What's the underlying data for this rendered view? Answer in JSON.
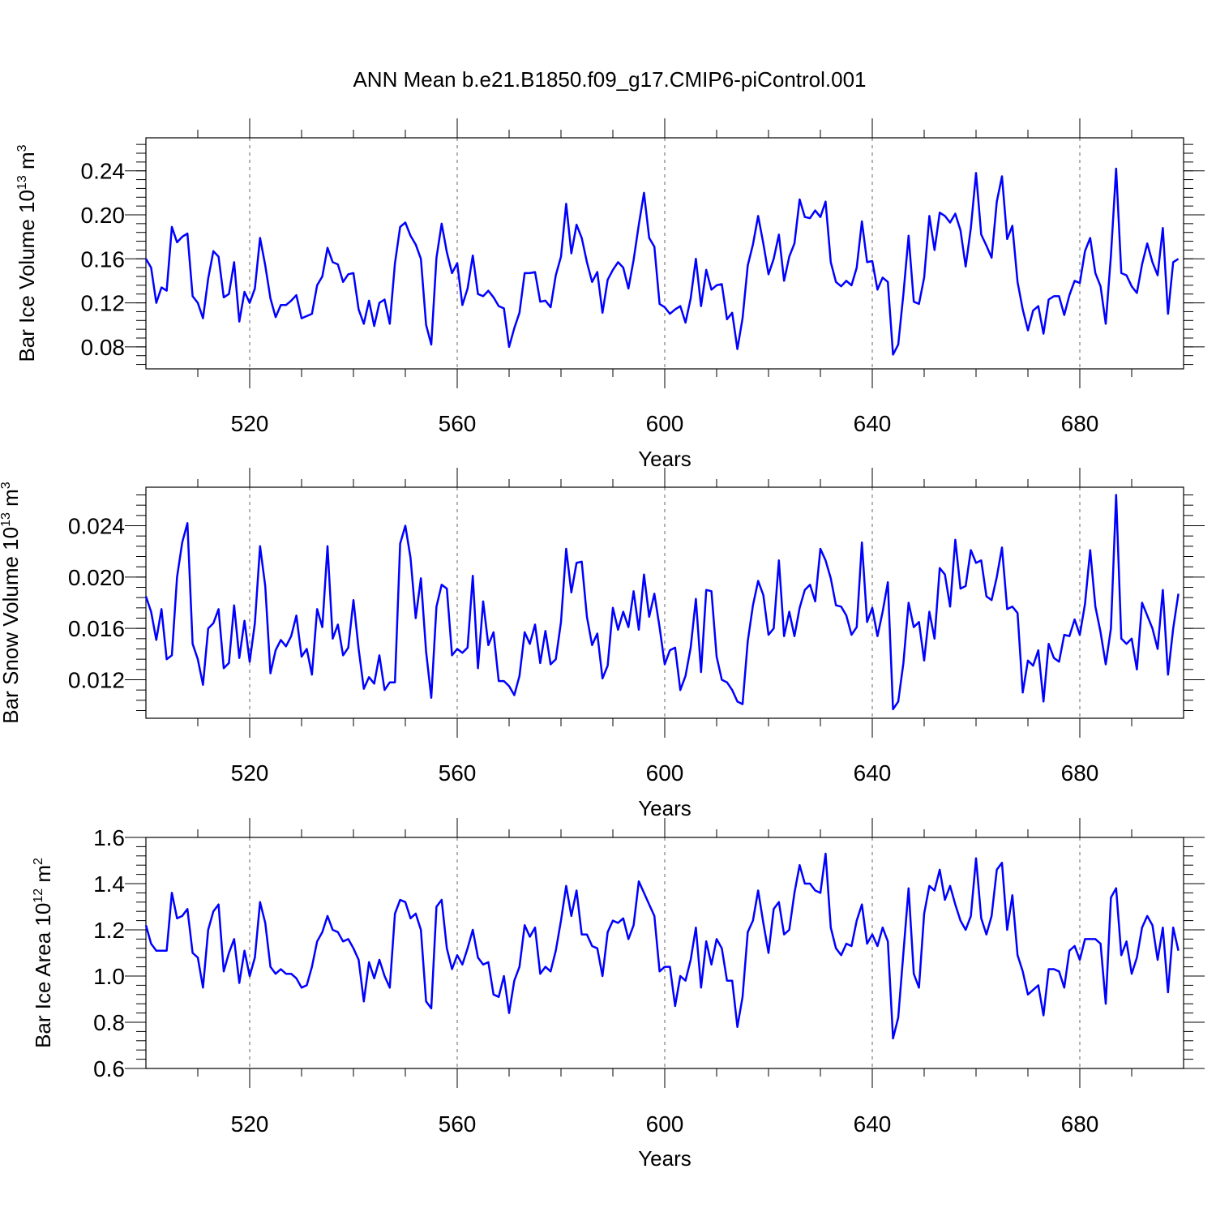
{
  "title": "ANN Mean b.e21.B1850.f09_g17.CMIP6-piControl.001",
  "chart_data": [
    {
      "type": "line",
      "ylabel_main": "Bar Ice Volume 10",
      "ylabel_sup": "13",
      "ylabel_unit": " m",
      "ylabel_unit_sup": "3",
      "xlabel": "Years",
      "xlim": [
        500,
        700
      ],
      "ylim": [
        0.06,
        0.27
      ],
      "yticks": [
        0.08,
        0.12,
        0.16,
        0.2,
        0.24
      ],
      "ytick_labels": [
        "0.08",
        "0.12",
        "0.16",
        "0.20",
        "0.24"
      ],
      "xticks": [
        520,
        560,
        600,
        640,
        680
      ],
      "xtick_labels": [
        "520",
        "560",
        "600",
        "640",
        "680"
      ],
      "series": [
        {
          "name": "Bar Ice Volume",
          "color": "#0000ff",
          "start_year": 500,
          "values": [
            0.16,
            0.152,
            0.12,
            0.134,
            0.131,
            0.189,
            0.175,
            0.18,
            0.183,
            0.126,
            0.12,
            0.106,
            0.142,
            0.167,
            0.162,
            0.125,
            0.128,
            0.157,
            0.103,
            0.13,
            0.12,
            0.133,
            0.179,
            0.154,
            0.124,
            0.107,
            0.118,
            0.118,
            0.122,
            0.127,
            0.106,
            0.108,
            0.11,
            0.136,
            0.144,
            0.17,
            0.157,
            0.155,
            0.139,
            0.146,
            0.147,
            0.114,
            0.101,
            0.122,
            0.099,
            0.12,
            0.123,
            0.101,
            0.156,
            0.189,
            0.193,
            0.181,
            0.173,
            0.16,
            0.1,
            0.082,
            0.161,
            0.192,
            0.166,
            0.147,
            0.156,
            0.118,
            0.133,
            0.163,
            0.128,
            0.126,
            0.131,
            0.125,
            0.117,
            0.115,
            0.08,
            0.097,
            0.111,
            0.147,
            0.147,
            0.148,
            0.121,
            0.122,
            0.116,
            0.145,
            0.162,
            0.21,
            0.165,
            0.191,
            0.179,
            0.157,
            0.139,
            0.148,
            0.111,
            0.141,
            0.15,
            0.157,
            0.152,
            0.133,
            0.159,
            0.191,
            0.22,
            0.179,
            0.171,
            0.119,
            0.116,
            0.11,
            0.114,
            0.117,
            0.102,
            0.124,
            0.16,
            0.117,
            0.15,
            0.132,
            0.136,
            0.137,
            0.105,
            0.111,
            0.078,
            0.106,
            0.154,
            0.173,
            0.199,
            0.174,
            0.146,
            0.16,
            0.182,
            0.14,
            0.162,
            0.174,
            0.214,
            0.198,
            0.197,
            0.204,
            0.198,
            0.212,
            0.157,
            0.139,
            0.135,
            0.14,
            0.136,
            0.152,
            0.194,
            0.157,
            0.158,
            0.132,
            0.143,
            0.139,
            0.073,
            0.082,
            0.128,
            0.181,
            0.121,
            0.119,
            0.143,
            0.199,
            0.168,
            0.202,
            0.199,
            0.193,
            0.201,
            0.186,
            0.153,
            0.188,
            0.238,
            0.182,
            0.172,
            0.161,
            0.212,
            0.235,
            0.178,
            0.19,
            0.139,
            0.114,
            0.095,
            0.113,
            0.117,
            0.092,
            0.123,
            0.126,
            0.126,
            0.109,
            0.127,
            0.14,
            0.138,
            0.167,
            0.179,
            0.147,
            0.135,
            0.101,
            0.163,
            0.242,
            0.147,
            0.145,
            0.135,
            0.129,
            0.155,
            0.174,
            0.157,
            0.145,
            0.188,
            0.11,
            0.157,
            0.16
          ]
        }
      ]
    },
    {
      "type": "line",
      "ylabel_main": "Bar Snow Volume 10",
      "ylabel_sup": "13",
      "ylabel_unit": " m",
      "ylabel_unit_sup": "3",
      "xlabel": "Years",
      "xlim": [
        500,
        700
      ],
      "ylim": [
        0.009,
        0.027
      ],
      "yticks": [
        0.012,
        0.016,
        0.02,
        0.024
      ],
      "ytick_labels": [
        "0.012",
        "0.016",
        "0.020",
        "0.024"
      ],
      "xticks": [
        520,
        560,
        600,
        640,
        680
      ],
      "xtick_labels": [
        "520",
        "560",
        "600",
        "640",
        "680"
      ],
      "series": [
        {
          "name": "Bar Snow Volume",
          "color": "#0000ff",
          "start_year": 500,
          "values": [
            0.0185,
            0.0173,
            0.0151,
            0.0175,
            0.0136,
            0.0139,
            0.02,
            0.0227,
            0.0242,
            0.0148,
            0.0136,
            0.0116,
            0.016,
            0.0164,
            0.0175,
            0.0129,
            0.0133,
            0.0178,
            0.0137,
            0.0166,
            0.0134,
            0.0164,
            0.0224,
            0.0193,
            0.0125,
            0.0143,
            0.0151,
            0.0146,
            0.0154,
            0.017,
            0.0138,
            0.0144,
            0.0124,
            0.0175,
            0.0161,
            0.0224,
            0.0152,
            0.0163,
            0.0139,
            0.0145,
            0.0182,
            0.0144,
            0.0113,
            0.0122,
            0.0117,
            0.0139,
            0.0112,
            0.0118,
            0.0118,
            0.0226,
            0.024,
            0.0215,
            0.0168,
            0.0199,
            0.0142,
            0.0106,
            0.0177,
            0.0194,
            0.0191,
            0.0139,
            0.0144,
            0.0141,
            0.0145,
            0.0201,
            0.0129,
            0.0181,
            0.0147,
            0.0157,
            0.0119,
            0.0119,
            0.0115,
            0.0108,
            0.0123,
            0.0157,
            0.0148,
            0.0163,
            0.0133,
            0.0158,
            0.0132,
            0.0136,
            0.0165,
            0.0222,
            0.0188,
            0.0211,
            0.0212,
            0.0169,
            0.0147,
            0.0156,
            0.0121,
            0.0131,
            0.0176,
            0.0159,
            0.0173,
            0.0161,
            0.0189,
            0.0159,
            0.0202,
            0.0169,
            0.0187,
            0.0161,
            0.0132,
            0.0143,
            0.0145,
            0.0112,
            0.0123,
            0.0145,
            0.0183,
            0.0126,
            0.019,
            0.0189,
            0.0138,
            0.012,
            0.0118,
            0.0112,
            0.0103,
            0.0101,
            0.015,
            0.0178,
            0.0197,
            0.0186,
            0.0155,
            0.016,
            0.0213,
            0.0154,
            0.0173,
            0.0154,
            0.0176,
            0.019,
            0.0194,
            0.0181,
            0.0222,
            0.0213,
            0.0199,
            0.0178,
            0.0177,
            0.017,
            0.0155,
            0.0161,
            0.0227,
            0.0165,
            0.0176,
            0.0154,
            0.0173,
            0.0196,
            0.0097,
            0.0103,
            0.0133,
            0.018,
            0.0161,
            0.0165,
            0.0135,
            0.0173,
            0.0152,
            0.0207,
            0.0202,
            0.0177,
            0.0229,
            0.0191,
            0.0193,
            0.0221,
            0.0211,
            0.0213,
            0.0185,
            0.0182,
            0.02,
            0.0223,
            0.0175,
            0.0177,
            0.0172,
            0.011,
            0.0135,
            0.0131,
            0.0143,
            0.0103,
            0.0148,
            0.0137,
            0.0134,
            0.0155,
            0.0154,
            0.0167,
            0.0155,
            0.0179,
            0.0221,
            0.0177,
            0.0157,
            0.0132,
            0.016,
            0.0264,
            0.0152,
            0.0148,
            0.0152,
            0.0128,
            0.018,
            0.017,
            0.016,
            0.0144,
            0.019,
            0.0124,
            0.016,
            0.0187
          ]
        }
      ]
    },
    {
      "type": "line",
      "ylabel_main": "Bar Ice Area 10",
      "ylabel_sup": "12",
      "ylabel_unit": " m",
      "ylabel_unit_sup": "2",
      "xlabel": "Years",
      "xlim": [
        500,
        700
      ],
      "ylim": [
        0.6,
        1.6
      ],
      "yticks": [
        0.6,
        0.8,
        1.0,
        1.2,
        1.4,
        1.6
      ],
      "ytick_labels": [
        "0.6",
        "0.8",
        "1.0",
        "1.2",
        "1.4",
        "1.6"
      ],
      "xticks": [
        520,
        560,
        600,
        640,
        680
      ],
      "xtick_labels": [
        "520",
        "560",
        "600",
        "640",
        "680"
      ],
      "series": [
        {
          "name": "Bar Ice Area",
          "color": "#0000ff",
          "start_year": 500,
          "values": [
            1.22,
            1.14,
            1.11,
            1.11,
            1.11,
            1.36,
            1.25,
            1.26,
            1.29,
            1.1,
            1.08,
            0.95,
            1.2,
            1.28,
            1.31,
            1.02,
            1.1,
            1.16,
            0.97,
            1.11,
            1.0,
            1.08,
            1.32,
            1.23,
            1.04,
            1.01,
            1.03,
            1.01,
            1.01,
            0.99,
            0.95,
            0.96,
            1.04,
            1.15,
            1.19,
            1.26,
            1.2,
            1.19,
            1.15,
            1.16,
            1.12,
            1.07,
            0.89,
            1.06,
            0.99,
            1.07,
            1.0,
            0.95,
            1.27,
            1.33,
            1.32,
            1.25,
            1.27,
            1.2,
            0.89,
            0.86,
            1.3,
            1.33,
            1.12,
            1.03,
            1.09,
            1.05,
            1.12,
            1.2,
            1.08,
            1.05,
            1.06,
            0.92,
            0.91,
            1.0,
            0.84,
            0.98,
            1.04,
            1.22,
            1.17,
            1.21,
            1.01,
            1.04,
            1.02,
            1.11,
            1.24,
            1.39,
            1.26,
            1.37,
            1.18,
            1.18,
            1.13,
            1.12,
            1.0,
            1.19,
            1.24,
            1.23,
            1.25,
            1.16,
            1.22,
            1.41,
            1.36,
            1.31,
            1.26,
            1.02,
            1.04,
            1.04,
            0.87,
            1.0,
            0.98,
            1.07,
            1.21,
            0.95,
            1.15,
            1.05,
            1.16,
            1.12,
            0.98,
            0.98,
            0.78,
            0.91,
            1.19,
            1.24,
            1.37,
            1.23,
            1.1,
            1.29,
            1.32,
            1.18,
            1.2,
            1.36,
            1.48,
            1.4,
            1.4,
            1.37,
            1.36,
            1.53,
            1.21,
            1.12,
            1.09,
            1.14,
            1.13,
            1.24,
            1.31,
            1.14,
            1.18,
            1.13,
            1.21,
            1.15,
            0.73,
            0.82,
            1.1,
            1.38,
            1.01,
            0.95,
            1.27,
            1.39,
            1.37,
            1.46,
            1.33,
            1.39,
            1.31,
            1.24,
            1.2,
            1.26,
            1.51,
            1.25,
            1.18,
            1.26,
            1.46,
            1.49,
            1.2,
            1.35,
            1.09,
            1.02,
            0.92,
            0.94,
            0.96,
            0.83,
            1.03,
            1.03,
            1.02,
            0.95,
            1.11,
            1.13,
            1.07,
            1.16,
            1.16,
            1.16,
            1.14,
            0.88,
            1.34,
            1.38,
            1.09,
            1.15,
            1.01,
            1.08,
            1.21,
            1.26,
            1.22,
            1.07,
            1.21,
            0.93,
            1.21,
            1.11
          ]
        }
      ]
    }
  ]
}
